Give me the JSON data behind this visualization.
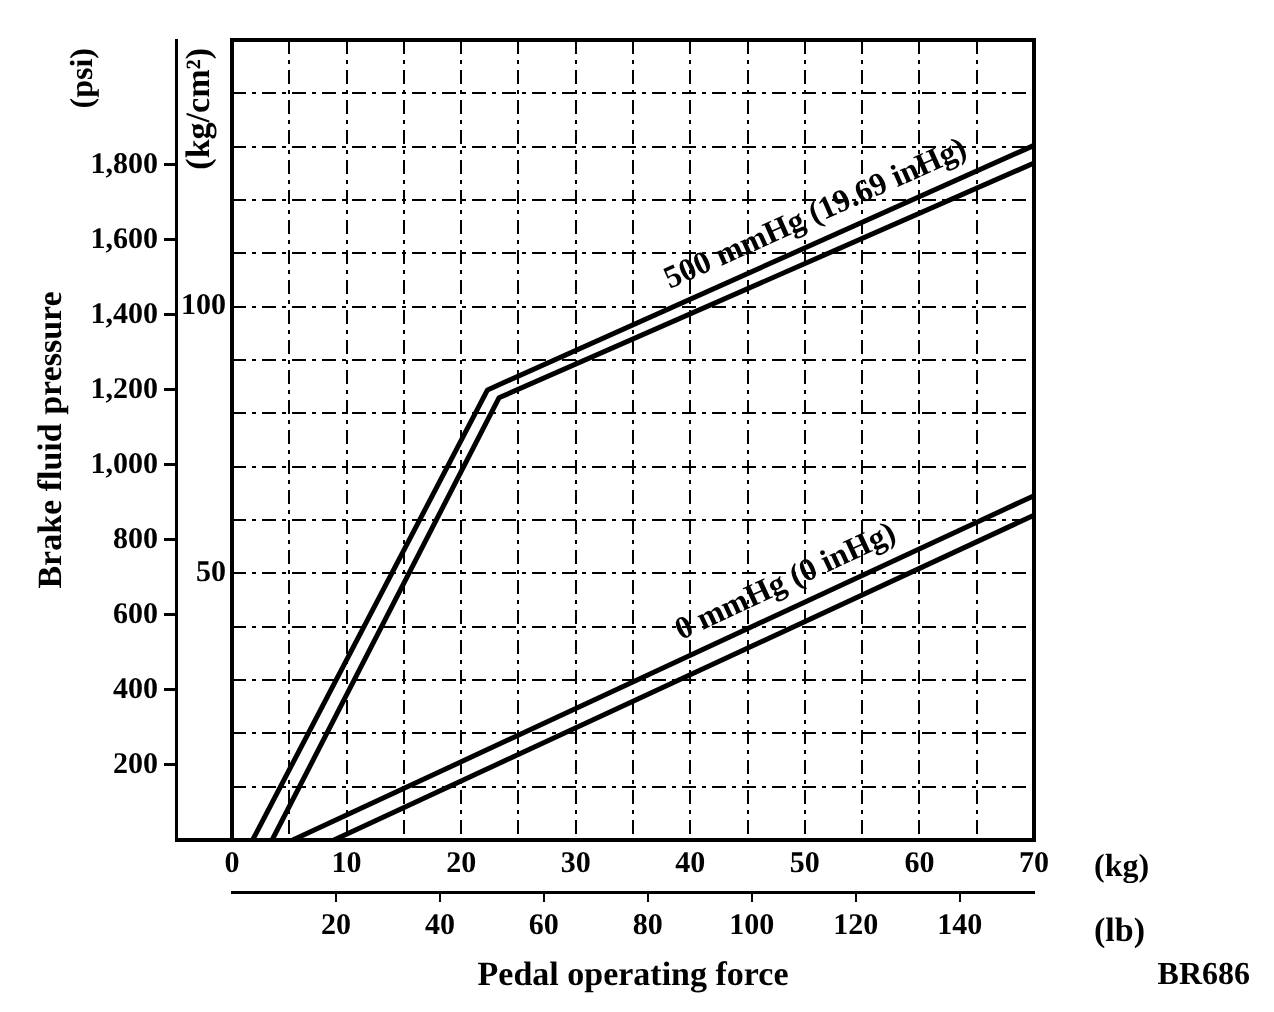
{
  "chart_data": {
    "type": "line",
    "xlabel": "Pedal operating force",
    "ylabel": "Brake fluid pressure",
    "y2label": "(kg/cm²)",
    "x2label": "(lb)",
    "annotations": [
      "(psi)",
      "(kg)",
      "500 mmHg (19.69 inHg)",
      "0 mmHg (0 inHg)",
      "BR686"
    ],
    "series": [
      {
        "color": "#000000",
        "x": [
          1.8,
          22.3,
          70
        ],
        "values": [
          0,
          1200,
          1852
        ]
      },
      {
        "color": "#000000",
        "x": [
          3.5,
          23.3,
          70
        ],
        "values": [
          0,
          1179,
          1805
        ]
      },
      {
        "color": "#000000",
        "x": [
          5.3,
          70
        ],
        "values": [
          0,
          918
        ]
      },
      {
        "color": "#000000",
        "x": [
          8.9,
          70
        ],
        "values": [
          0,
          866
        ]
      }
    ],
    "xlim": [
      0,
      70
    ],
    "xticks": [
      0,
      {
        "value": 5,
        "label": null
      },
      10,
      {
        "value": 15,
        "label": null
      },
      20,
      {
        "value": 25,
        "label": null
      },
      30,
      {
        "value": 35,
        "label": null
      },
      40,
      {
        "value": 45,
        "label": null
      },
      50,
      {
        "value": 55,
        "label": null
      },
      60,
      {
        "value": 65,
        "label": null
      },
      70
    ],
    "x2lim": [
      0,
      154.3
    ],
    "x2ticks": [
      20,
      40,
      60,
      80,
      100,
      120,
      140
    ],
    "ylim": [
      0,
      2133
    ],
    "yticks": [
      {
        "value": 200,
        "label": "200"
      },
      {
        "value": 400,
        "label": "400"
      },
      {
        "value": 600,
        "label": "600"
      },
      {
        "value": 800,
        "label": "800"
      },
      {
        "value": 1000,
        "label": "1,000"
      },
      {
        "value": 1200,
        "label": "1,200"
      },
      {
        "value": 1400,
        "label": "1,400"
      },
      {
        "value": 1600,
        "label": "1,600"
      },
      {
        "value": 1800,
        "label": "1,800"
      }
    ],
    "y2lim": [
      0,
      150
    ],
    "y2ticks": [
      {
        "value": 10,
        "label": null
      },
      {
        "value": 20,
        "label": null
      },
      {
        "value": 30,
        "label": null
      },
      {
        "value": 40,
        "label": null
      },
      50,
      {
        "value": 60,
        "label": null
      },
      {
        "value": 70,
        "label": null
      },
      {
        "value": 80,
        "label": null
      },
      {
        "value": 90,
        "label": null
      },
      100,
      {
        "value": 110,
        "label": null
      },
      {
        "value": 120,
        "label": null
      },
      {
        "value": 130,
        "label": null
      },
      {
        "value": 140,
        "label": null
      }
    ],
    "grid": true
  }
}
